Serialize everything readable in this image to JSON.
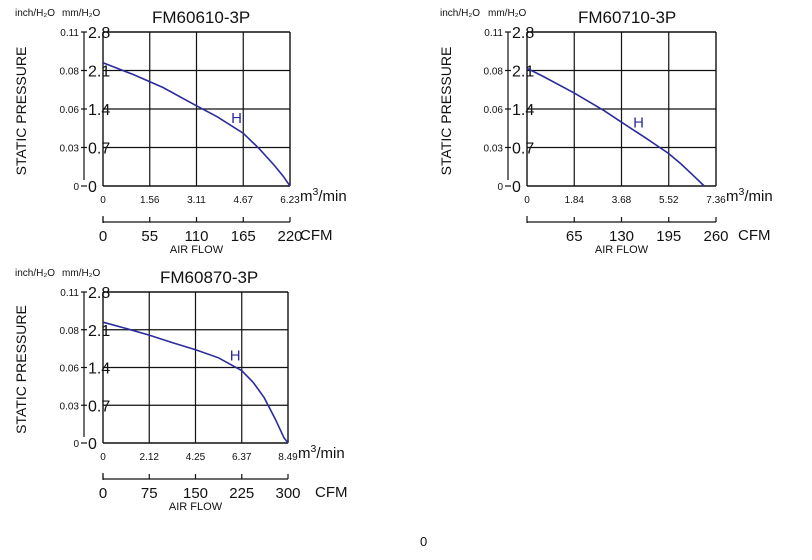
{
  "colors": {
    "curve": "#2b2b9e",
    "grid": "#111111"
  },
  "stray_mark": "0",
  "chart_data": [
    {
      "type": "line",
      "title": "FM60610-3P",
      "ylabel": "STATIC PRESSURE",
      "xlabel": "AIR FLOW",
      "units": {
        "inch": "inch/H₂O",
        "mm": "mm/H₂O",
        "m3": "m³/min",
        "cfm": "CFM"
      },
      "x_ticks_m3": [
        "0",
        "1.56",
        "3.11",
        "4.67",
        "6.23"
      ],
      "x_ticks_cfm": [
        "0",
        "55",
        "110",
        "165",
        "220"
      ],
      "y_ticks_mm": [
        "0",
        "0.7",
        "1.4",
        "2.1",
        "2.8"
      ],
      "y_ticks_inch": [
        "0",
        "0.03",
        "0.06",
        "0.08",
        "0.11"
      ],
      "xlim": [
        0,
        6.23
      ],
      "ylim": [
        0,
        2.8
      ],
      "series": [
        {
          "name": "H",
          "x": [
            0,
            1.0,
            2.0,
            3.11,
            3.8,
            4.67,
            5.2,
            5.7,
            6.0,
            6.23
          ],
          "y": [
            2.24,
            2.03,
            1.79,
            1.46,
            1.26,
            0.96,
            0.68,
            0.38,
            0.18,
            0
          ]
        }
      ]
    },
    {
      "type": "line",
      "title": "FM60710-3P",
      "ylabel": "STATIC PRESSURE",
      "xlabel": "AIR FLOW",
      "units": {
        "inch": "inch/H₂O",
        "mm": "mm/H₂O",
        "m3": "m³/min",
        "cfm": "CFM"
      },
      "x_ticks_m3": [
        "0",
        "1.84",
        "3.68",
        "5.52",
        "7.36"
      ],
      "x_ticks_cfm": [
        "65",
        "130",
        "195",
        "260"
      ],
      "y_ticks_mm": [
        "0",
        "0.7",
        "1.4",
        "2.1",
        "2.8"
      ],
      "y_ticks_inch": [
        "0",
        "0.03",
        "0.06",
        "0.08",
        "0.11"
      ],
      "xlim": [
        0,
        7.36
      ],
      "ylim": [
        0,
        2.8
      ],
      "series": [
        {
          "name": "H",
          "x": [
            0,
            0.6,
            1.84,
            3.0,
            3.68,
            4.6,
            5.52,
            6.0,
            6.5,
            6.9
          ],
          "y": [
            2.14,
            2.0,
            1.69,
            1.37,
            1.16,
            0.88,
            0.59,
            0.4,
            0.18,
            0
          ]
        }
      ]
    },
    {
      "type": "line",
      "title": "FM60870-3P",
      "ylabel": "STATIC PRESSURE",
      "xlabel": "AIR FLOW",
      "units": {
        "inch": "inch/H₂O",
        "mm": "mm/H₂O",
        "m3": "m³/min",
        "cfm": "CFM"
      },
      "x_ticks_m3": [
        "0",
        "2.12",
        "4.25",
        "6.37",
        "8.49"
      ],
      "x_ticks_cfm": [
        "0",
        "75",
        "150",
        "225",
        "300"
      ],
      "y_ticks_mm": [
        "0",
        "0.7",
        "1.4",
        "2.1",
        "2.8"
      ],
      "y_ticks_inch": [
        "0",
        "0.03",
        "0.06",
        "0.08",
        "0.11"
      ],
      "xlim": [
        0,
        8.49
      ],
      "ylim": [
        0,
        2.8
      ],
      "series": [
        {
          "name": "H",
          "x": [
            0,
            1.0,
            2.12,
            3.2,
            4.25,
            5.3,
            6.37,
            6.9,
            7.4,
            7.9,
            8.3,
            8.49
          ],
          "y": [
            2.24,
            2.13,
            2.0,
            1.86,
            1.73,
            1.58,
            1.34,
            1.12,
            0.84,
            0.45,
            0.1,
            0
          ]
        }
      ]
    }
  ]
}
